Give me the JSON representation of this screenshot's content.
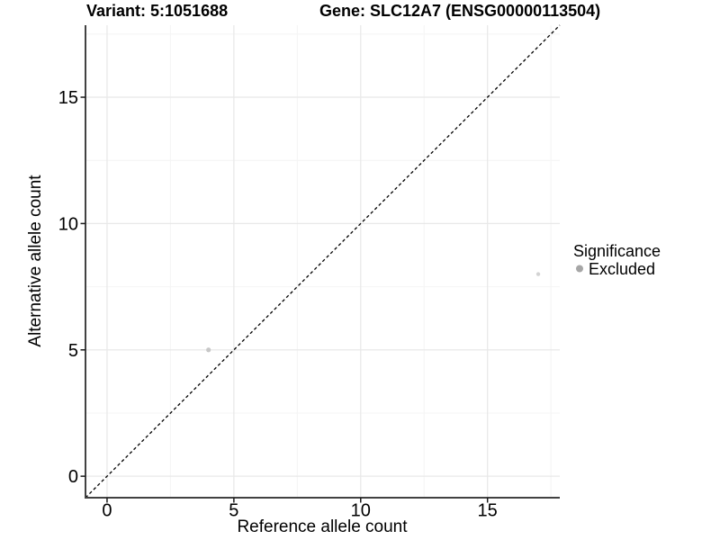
{
  "figure": {
    "background": "#ffffff"
  },
  "chart_data": {
    "type": "scatter",
    "titles": {
      "left": "Variant: 5:1051688",
      "right": "Gene: SLC12A7 (ENSG00000113504)"
    },
    "xlabel": "Reference allele count",
    "ylabel": "Alternative allele count",
    "xlim": [
      -0.85,
      17.85
    ],
    "ylim": [
      -0.85,
      17.85
    ],
    "xticks": [
      0,
      5,
      10,
      15
    ],
    "yticks": [
      0,
      5,
      10,
      15
    ],
    "minor_gridlines": [
      2.5,
      7.5,
      12.5,
      17.5
    ],
    "grid": "major+minor",
    "identity_line": {
      "style": "dashed",
      "slope": 1,
      "intercept": 0
    },
    "points": [
      {
        "x": 4,
        "y": 5,
        "significance": "Excluded",
        "r": 2.6,
        "fill": "#c7c7c7"
      },
      {
        "x": 17,
        "y": 8,
        "significance": "Excluded",
        "r": 2.2,
        "fill": "#d3d3d3"
      }
    ],
    "legend": {
      "title": "Significance",
      "position": "right",
      "items": [
        {
          "label": "Excluded",
          "color": "#a6a6a6",
          "marker": "circle"
        }
      ]
    },
    "colors": {
      "point_fill": "#c7c7c7",
      "grid_major": "#e8e8e8",
      "grid_minor": "#f4f4f4",
      "axis_line": "#424242",
      "tick_mark": "#1a1a1a",
      "text": "#000000",
      "identity_line": "#000000"
    }
  }
}
